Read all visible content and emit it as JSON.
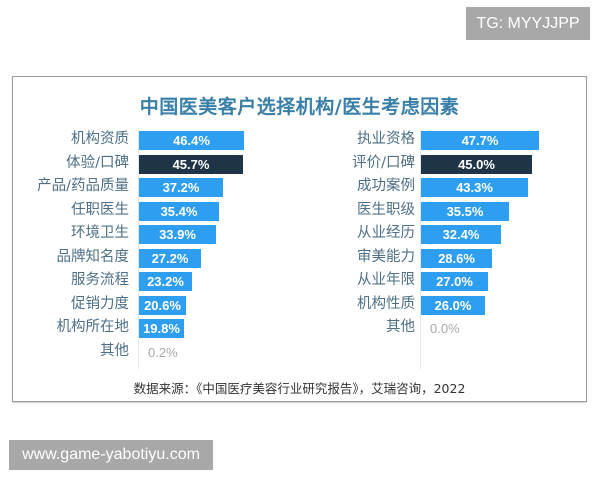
{
  "watermarks": {
    "top": "TG: MYYJJPP",
    "bottom": "www.game-yabotiyu.com"
  },
  "colors": {
    "bar": "#2e9ef0",
    "highlight_bar": "#1f3547",
    "title": "#3a7fa8",
    "label": "#4f6f86"
  },
  "chart_data": [
    {
      "type": "bar",
      "orientation": "horizontal",
      "title": "中国医美客户选择机构/医生考虑因素",
      "panel": "机构",
      "categories": [
        "机构资质",
        "体验/口碑",
        "产品/药品质量",
        "任职医生",
        "环境卫生",
        "品牌知名度",
        "服务流程",
        "促销力度",
        "机构所在地",
        "其他"
      ],
      "values": [
        46.4,
        45.7,
        37.2,
        35.4,
        33.9,
        27.2,
        23.2,
        20.6,
        19.8,
        0.2
      ],
      "labels": [
        "46.4%",
        "45.7%",
        "37.2%",
        "35.4%",
        "33.9%",
        "27.2%",
        "23.2%",
        "20.6%",
        "19.8%",
        "0.2%"
      ],
      "highlight_index": 1,
      "unit": "%"
    },
    {
      "type": "bar",
      "orientation": "horizontal",
      "title": "中国医美客户选择机构/医生考虑因素",
      "panel": "医生",
      "categories": [
        "执业资格",
        "评价/口碑",
        "成功案例",
        "医生职级",
        "从业经历",
        "审美能力",
        "从业年限",
        "机构性质",
        "其他"
      ],
      "values": [
        47.7,
        45.0,
        43.3,
        35.5,
        32.4,
        28.6,
        27.0,
        26.0,
        0.0
      ],
      "labels": [
        "47.7%",
        "45.0%",
        "43.3%",
        "35.5%",
        "32.4%",
        "28.6%",
        "27.0%",
        "26.0%",
        "0.0%"
      ],
      "highlight_index": 1,
      "unit": "%"
    }
  ],
  "chart": {
    "title": "中国医美客户选择机构/医生考虑因素",
    "source": "数据来源：《中国医疗美容行业研究报告》，艾瑞咨询，2022"
  }
}
